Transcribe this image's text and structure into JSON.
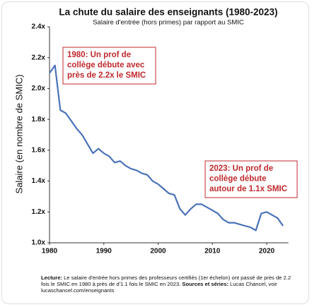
{
  "chart_data": {
    "type": "line",
    "title": "La chute du salaire des enseignants (1980-2023)",
    "subtitle": "Salaire d'entrée (hors primes) par rapport au SMIC",
    "y_label": "Salaire (en nombre de SMIC)",
    "x": [
      1980,
      1981,
      1982,
      1983,
      1984,
      1985,
      1986,
      1987,
      1988,
      1989,
      1990,
      1991,
      1992,
      1993,
      1994,
      1995,
      1996,
      1997,
      1998,
      1999,
      2000,
      2001,
      2002,
      2003,
      2004,
      2005,
      2006,
      2007,
      2008,
      2009,
      2010,
      2011,
      2012,
      2013,
      2014,
      2015,
      2016,
      2017,
      2018,
      2019,
      2020,
      2021,
      2022,
      2023
    ],
    "series": [
      {
        "name": "Salaire d'entrée / SMIC",
        "color": "#4a72b8",
        "values": [
          2.1,
          2.15,
          1.86,
          1.84,
          1.79,
          1.74,
          1.7,
          1.64,
          1.58,
          1.61,
          1.58,
          1.56,
          1.52,
          1.53,
          1.5,
          1.48,
          1.47,
          1.45,
          1.44,
          1.4,
          1.38,
          1.35,
          1.32,
          1.31,
          1.22,
          1.18,
          1.22,
          1.25,
          1.25,
          1.23,
          1.21,
          1.19,
          1.15,
          1.13,
          1.13,
          1.12,
          1.11,
          1.1,
          1.08,
          1.19,
          1.2,
          1.18,
          1.16,
          1.11
        ]
      }
    ],
    "xlim": [
      1980,
      2024
    ],
    "xticks": [
      1980,
      1990,
      2000,
      2010,
      2020
    ],
    "ylim": [
      1.0,
      2.4
    ],
    "yticks": [
      {
        "value": 1.0,
        "label": "1.0x"
      },
      {
        "value": 1.2,
        "label": "1.2x"
      },
      {
        "value": 1.4,
        "label": "1.4x"
      },
      {
        "value": 1.6,
        "label": "1.6x"
      },
      {
        "value": 1.8,
        "label": "1.8x"
      },
      {
        "value": 2.0,
        "label": "2.0x"
      },
      {
        "value": 2.2,
        "label": "2.2x"
      },
      {
        "value": 2.4,
        "label": "2.4x"
      }
    ],
    "annotations": [
      {
        "lines": [
          "1980: Un prof de",
          "collège débute avec",
          "près de 2.2x le SMIC"
        ]
      },
      {
        "lines": [
          "2023: Un prof de",
          "collège débute",
          "autour de 1.1x SMIC"
        ]
      }
    ],
    "footnote": [
      {
        "text": "Lecture:",
        "bold": true
      },
      {
        "text": " Le salaire d'entrée hors primes des professeurs certifiés (1er échelon) ont passé de près de 2.2 fois le SMIC en 1980 à près de d'1.1 fois le SMIC en 2023. ",
        "bold": false
      },
      {
        "text": "Sources et séries:",
        "bold": true
      },
      {
        "text": " Lucas Chancel, voir lucaschancel.com/enseignants",
        "bold": false
      }
    ]
  }
}
